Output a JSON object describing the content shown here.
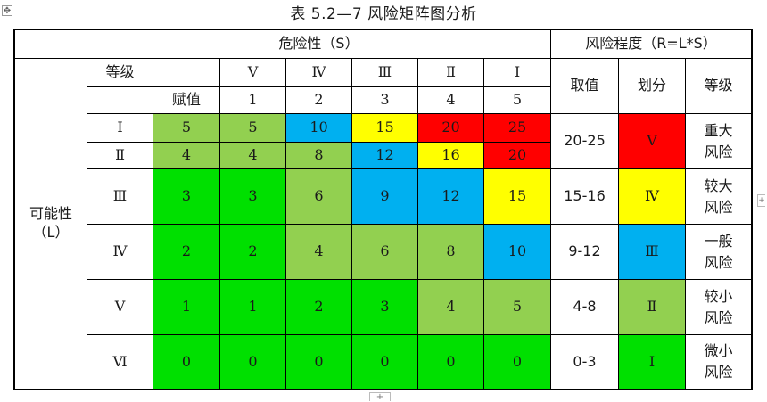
{
  "title": "表 5.2—7 风险矩阵图分析",
  "header": {
    "severity_label": "危险性（S）",
    "risk_degree_label": "风险程度（R=L*S）",
    "grade_label": "等级",
    "score_label": "赋值",
    "severity_levels": [
      "Ⅴ",
      "Ⅳ",
      "Ⅲ",
      "Ⅱ",
      "Ⅰ"
    ],
    "severity_scores": [
      "1",
      "2",
      "3",
      "4",
      "5"
    ],
    "value_label": "取值",
    "division_label": "划分",
    "level_label": "等级"
  },
  "possibility_label": "可能性（L）",
  "rows": [
    {
      "grade": "Ⅰ",
      "score": "5",
      "cells": [
        "5",
        "10",
        "15",
        "20",
        "25"
      ]
    },
    {
      "grade": "Ⅱ",
      "score": "4",
      "cells": [
        "4",
        "8",
        "12",
        "16",
        "20"
      ]
    },
    {
      "grade": "Ⅲ",
      "score": "3",
      "cells": [
        "3",
        "6",
        "9",
        "12",
        "15"
      ]
    },
    {
      "grade": "Ⅳ",
      "score": "2",
      "cells": [
        "2",
        "4",
        "6",
        "8",
        "10"
      ]
    },
    {
      "grade": "Ⅴ",
      "score": "1",
      "cells": [
        "1",
        "2",
        "3",
        "4",
        "5"
      ]
    },
    {
      "grade": "Ⅵ",
      "score": "0",
      "cells": [
        "0",
        "0",
        "0",
        "0",
        "0"
      ]
    }
  ],
  "risk_levels": [
    {
      "range": "20-25",
      "division": "Ⅴ",
      "level": "重大风险"
    },
    {
      "range": "15-16",
      "division": "Ⅳ",
      "level": "较大风险"
    },
    {
      "range": "9-12",
      "division": "Ⅲ",
      "level": "一般风险"
    },
    {
      "range": "4-8",
      "division": "Ⅱ",
      "level": "较小风险"
    },
    {
      "range": "0-3",
      "division": "Ⅰ",
      "level": "微小风险"
    }
  ],
  "colors": {
    "olive_green": "#92d050",
    "bright_green": "#00e000",
    "blue": "#00b0f0",
    "yellow": "#ffff00",
    "red": "#ff0000"
  },
  "icons": {
    "table_move_handle": "four-arrows-move-icon",
    "add_row_handle": "plus-icon",
    "add_column_handle": "plus-icon"
  }
}
